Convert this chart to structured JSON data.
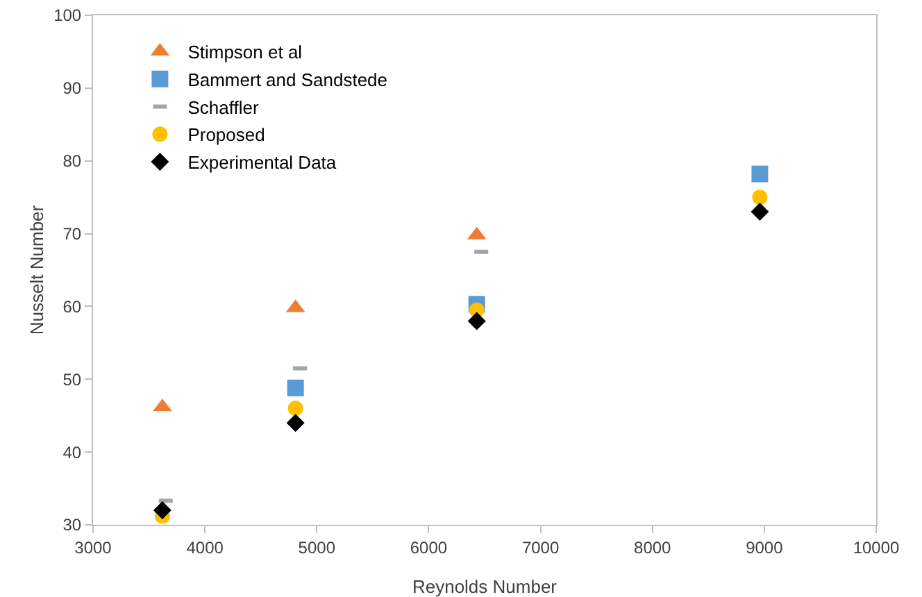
{
  "chart_data": {
    "type": "scatter",
    "xlabel": "Reynolds Number",
    "ylabel": "Nusselt Number",
    "xlim": [
      3000,
      10000
    ],
    "xticks": [
      3000,
      4000,
      5000,
      6000,
      7000,
      8000,
      9000,
      10000
    ],
    "ylim": [
      30,
      100
    ],
    "yticks": [
      30,
      40,
      50,
      60,
      70,
      80,
      90,
      100
    ],
    "grid": false,
    "legend": "top left",
    "series": [
      {
        "name": "Stimpson et al",
        "color": "#ed7d31",
        "marker": "triangle",
        "x": [
          3620,
          4810,
          6430
        ],
        "values": [
          46.2,
          59.8,
          69.8
        ]
      },
      {
        "name": "Bammert and Sandstede",
        "color": "#5b9bd5",
        "marker": "square",
        "x": [
          4810,
          6430,
          8960
        ],
        "values": [
          48.8,
          60.3,
          78.2
        ]
      },
      {
        "name": "Schaffler",
        "color": "#a5a5a5",
        "x": [
          3650,
          4850,
          6470
        ],
        "values": [
          33.3,
          51.5,
          67.5
        ]
      },
      {
        "name": "Proposed",
        "color": "#ffc000",
        "marker": "circle",
        "x": [
          3620,
          4810,
          6430,
          8960
        ],
        "values": [
          31.2,
          46,
          59.5,
          75
        ]
      },
      {
        "name": "Experimental Data",
        "color": "#000000",
        "marker": "diamond",
        "x": [
          3620,
          4810,
          6430,
          8960
        ],
        "values": [
          32,
          44,
          58,
          73
        ]
      }
    ]
  }
}
